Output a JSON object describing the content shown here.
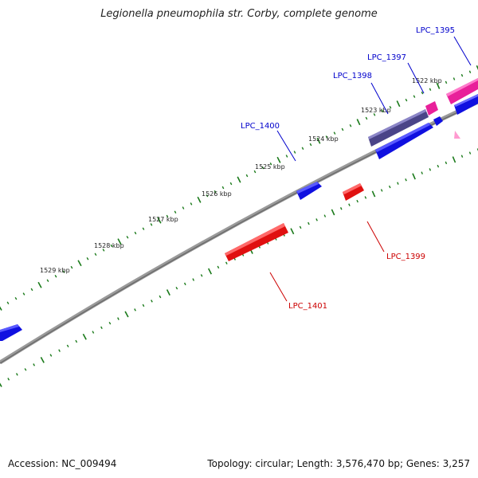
{
  "title": "Legionella pneumophila str. Corby, complete genome",
  "footer": {
    "accession": "Accession: NC_009494",
    "summary": "Topology: circular; Length: 3,576,470 bp; Genes: 3,257"
  },
  "colors": {
    "backbone": "#8a8a8a",
    "tick": "#1a7a1a",
    "forward_gene": "#1010e0",
    "reverse_gene": "#e01010",
    "purple_gene": "#4a4488",
    "pink_gene": "#e8209a",
    "label_blue": "#0000cc",
    "label_red": "#cc0000"
  },
  "scale_labels": [
    "1522 kbp",
    "1523 kbp",
    "1524 kbp",
    "1525 kbp",
    "1526 kbp",
    "1527 kbp",
    "1528 kbp",
    "1529 kbp"
  ],
  "gene_labels": [
    {
      "name": "LPC_1395",
      "color": "label_blue"
    },
    {
      "name": "LPC_1397",
      "color": "label_blue"
    },
    {
      "name": "LPC_1398",
      "color": "label_blue"
    },
    {
      "name": "LPC_1400",
      "color": "label_blue"
    },
    {
      "name": "LPC_1399",
      "color": "label_red"
    },
    {
      "name": "LPC_1401",
      "color": "label_red"
    }
  ]
}
